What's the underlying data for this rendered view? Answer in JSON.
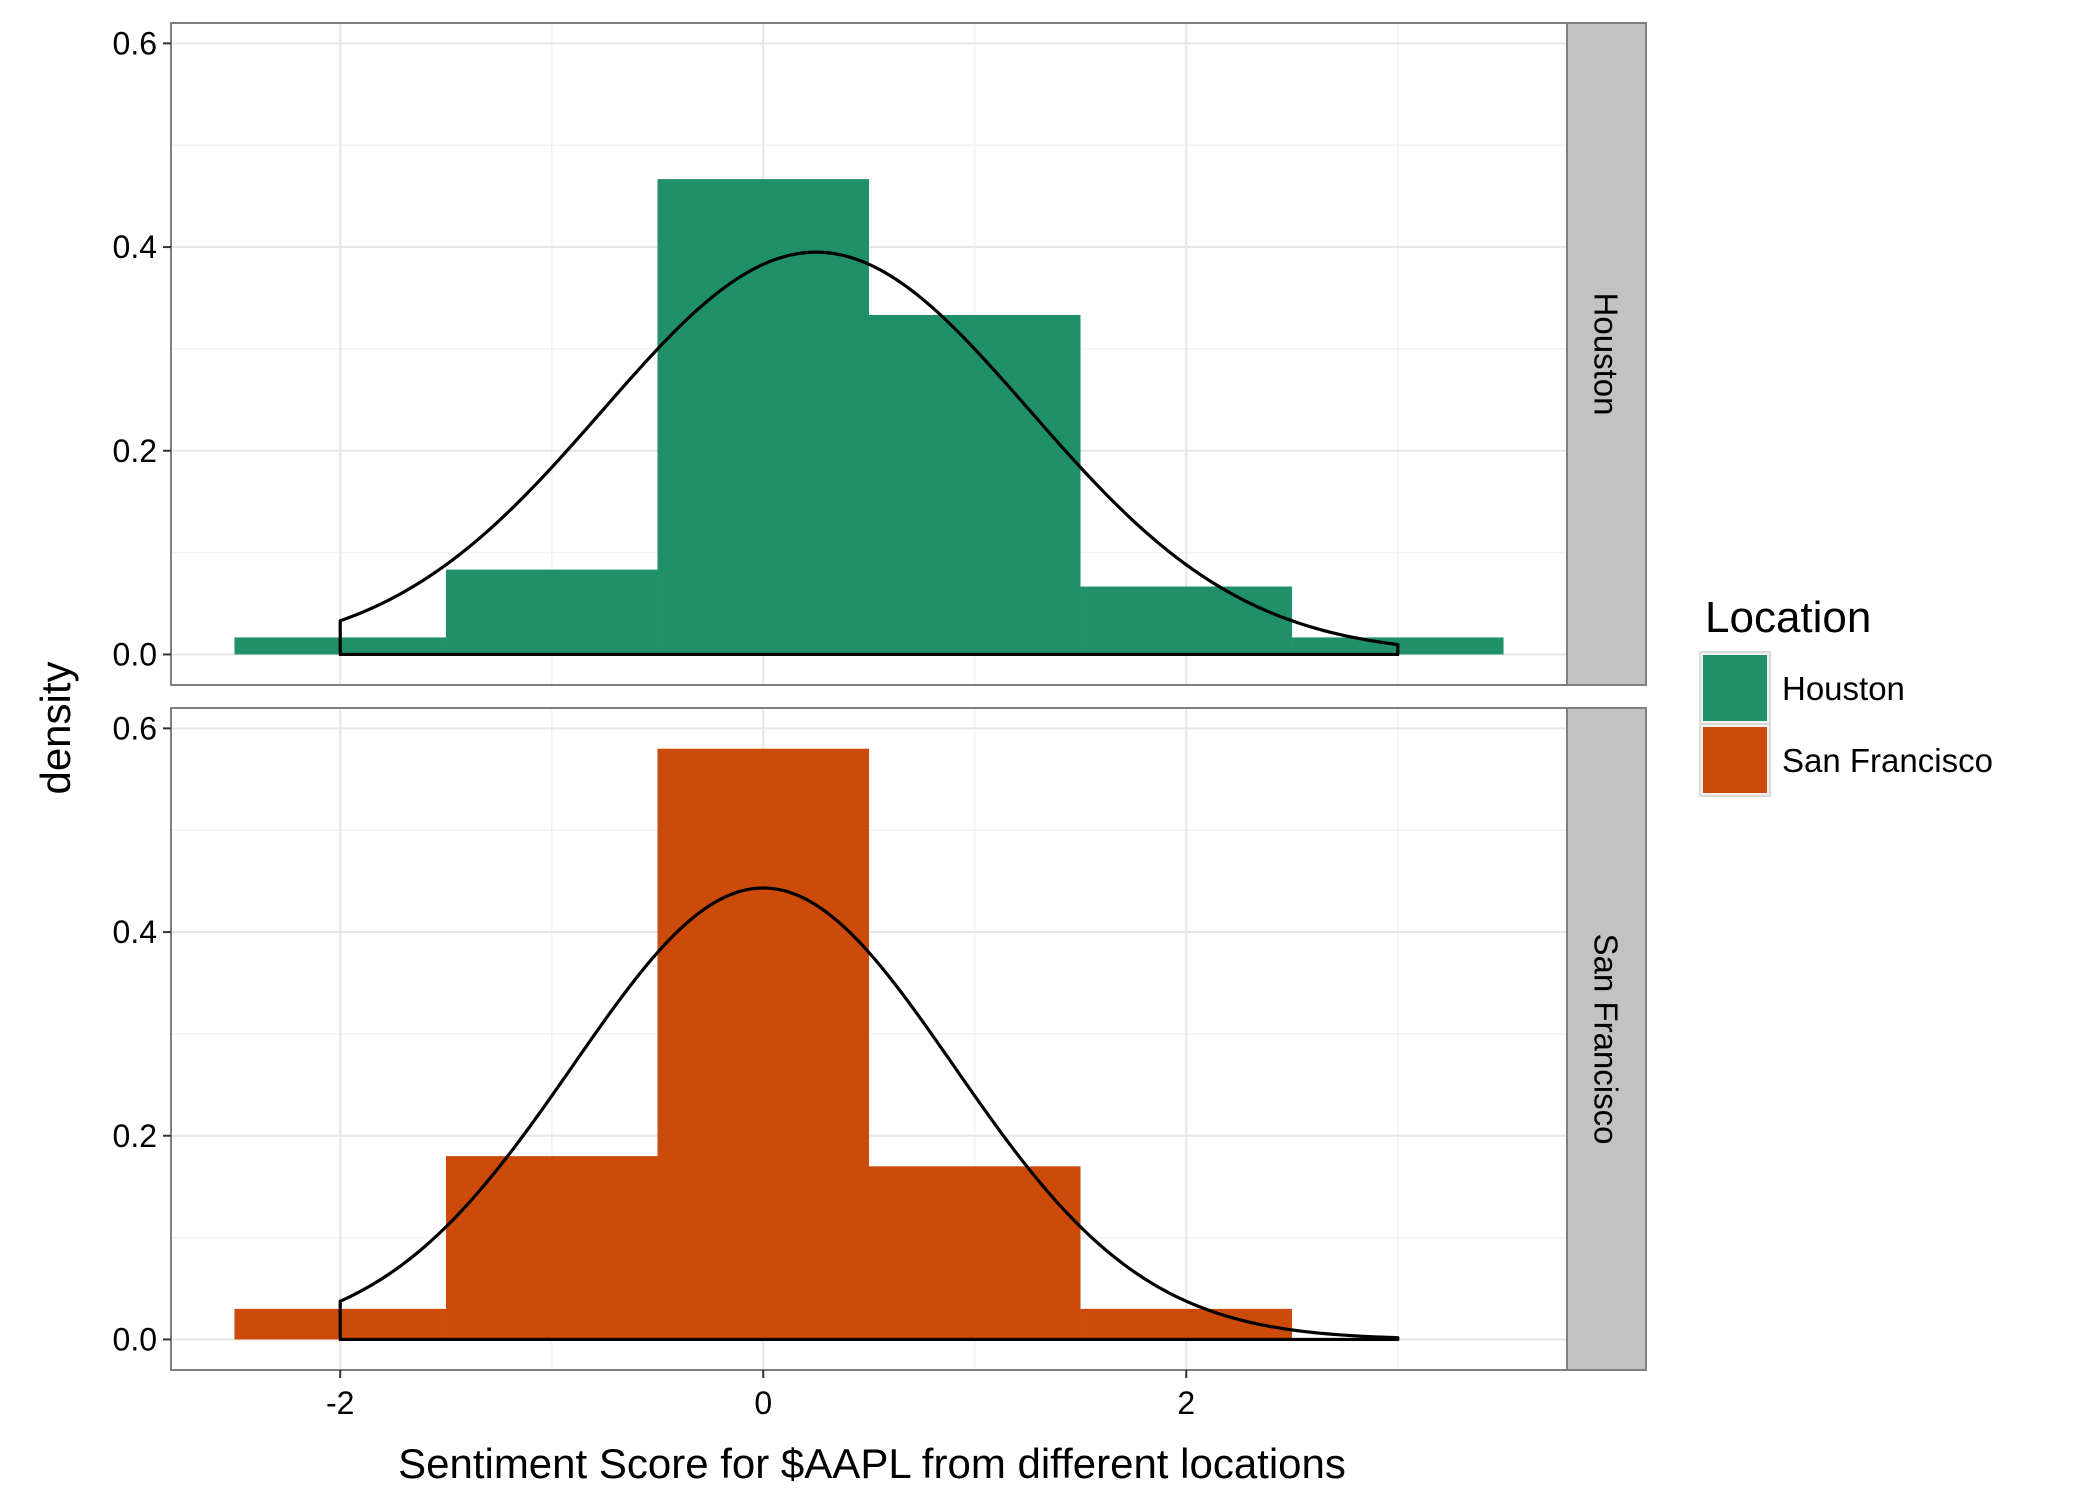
{
  "chart_data": {
    "type": "histogram",
    "xlabel": "Sentiment Score for $AAPL from different locations",
    "ylabel": "density",
    "xlim": [
      -2.8,
      3.8
    ],
    "ylim": [
      -0.03,
      0.62
    ],
    "x_ticks": [
      -2,
      0,
      2
    ],
    "x_tick_labels": [
      "-2",
      "0",
      "2"
    ],
    "y_ticks": [
      0.0,
      0.2,
      0.4,
      0.6
    ],
    "y_tick_labels": [
      "0.0",
      "0.2",
      "0.4",
      "0.6"
    ],
    "grid": true,
    "bin_edges": [
      -2.5,
      -1.5,
      -0.5,
      0.5,
      1.5,
      2.5,
      3.5
    ],
    "legend": {
      "title": "Location",
      "position": "right",
      "items": [
        {
          "label": "Houston",
          "color": "#1f9068"
        },
        {
          "label": "San Francisco",
          "color": "#cc4b0a"
        }
      ]
    },
    "panels": [
      {
        "strip_label": "Houston",
        "color": "#1f9068",
        "densities": [
          0.0167,
          0.0833,
          0.4667,
          0.3333,
          0.0667,
          0.0167
        ],
        "normal_curve": {
          "mean": 0.25,
          "sd": 1.01,
          "x_range": [
            -2,
            3
          ]
        }
      },
      {
        "strip_label": "San Francisco",
        "color": "#cc4b0a",
        "densities": [
          0.03,
          0.18,
          0.58,
          0.17,
          0.03
        ],
        "normal_curve": {
          "mean": 0.0,
          "sd": 0.9,
          "x_range": [
            -2,
            3
          ]
        }
      }
    ]
  }
}
